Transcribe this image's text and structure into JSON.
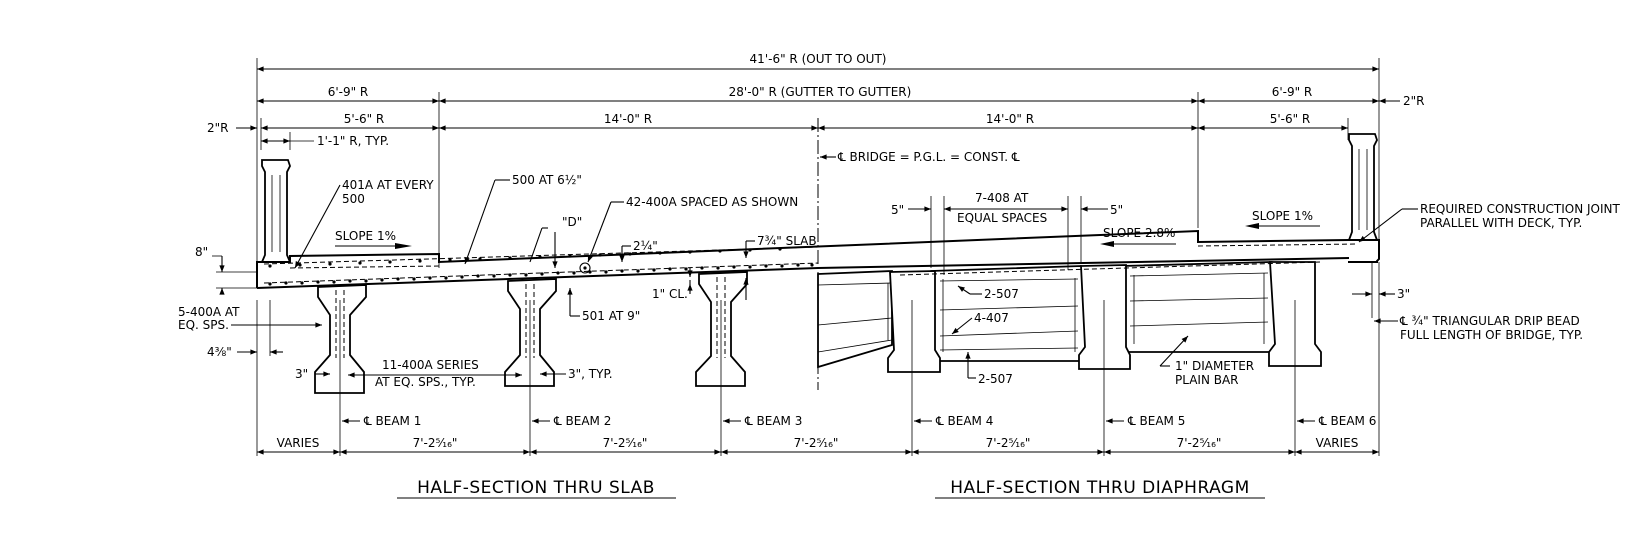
{
  "dimensions": {
    "overall": "41'-6\" R (OUT TO OUT)",
    "gutter": "28'-0\" R (GUTTER TO GUTTER)",
    "left_overhang": "6'-9\" R",
    "right_overhang": "6'-9\" R",
    "left_sidewalk": "5'-6\" R",
    "right_sidewalk": "5'-6\" R",
    "lane_left": "14'-0\" R",
    "lane_right": "14'-0\" R",
    "left_edge": "2\"R",
    "right_edge": "2\"R",
    "rail_width": "1'-1\" R, TYP.",
    "curb_height": "8\"",
    "bar_offset": "4⅜\"",
    "gap_left": "3\"",
    "gap_right": "3\", TYP.",
    "drip_offset": "3\"",
    "diaph_left": "5\"",
    "diaph_right": "5\"",
    "bottom": [
      "VARIES",
      "7'-2⁵⁄₁₆\"",
      "7'-2⁵⁄₁₆\"",
      "7'-2⁵⁄₁₆\"",
      "7'-2⁵⁄₁₆\"",
      "7'-2⁵⁄₁₆\"",
      "VARIES"
    ]
  },
  "beams": [
    "℄ BEAM 1",
    "℄ BEAM 2",
    "℄ BEAM 3",
    "℄ BEAM 4",
    "℄ BEAM 5",
    "℄ BEAM 6"
  ],
  "notes": {
    "cl_bridge": "℄ BRIDGE = P.G.L. = CONST. ℄",
    "bar_401a_1": "401A AT EVERY",
    "bar_401a_2": "500",
    "bar_500": "500 AT 6½\"",
    "bar_400a": "42-400A SPACED AS SHOWN",
    "d_mark": "\"D\"",
    "dim_2_25": "2¼\"",
    "slab": "7¾\" SLAB",
    "slope_left": "SLOPE 1%",
    "slope_right": "SLOPE 1%",
    "slope_deck": "SLOPE 2.8%",
    "eq_sps_1": "5-400A AT",
    "eq_sps_2": "EQ. SPS.",
    "bar_501": "501 AT 9\"",
    "cover": "1\" CL.",
    "series_1": "11-400A SERIES",
    "series_2": "AT EQ. SPS., TYP.",
    "diaph_bars_1": "7-408 AT",
    "diaph_bars_2": "EQUAL SPACES",
    "bar_507a": "2-507",
    "bar_407": "4-407",
    "bar_507b": "2-507",
    "plain_bar_1": "1\" DIAMETER",
    "plain_bar_2": "PLAIN BAR",
    "joint_1": "REQUIRED CONSTRUCTION JOINT",
    "joint_2": "PARALLEL WITH DECK, TYP.",
    "drip_1": "℄ ¾\" TRIANGULAR DRIP BEAD",
    "drip_2": "FULL LENGTH OF BRIDGE, TYP."
  },
  "titles": {
    "left": "HALF-SECTION THRU SLAB",
    "right": "HALF-SECTION THRU DIAPHRAGM"
  }
}
